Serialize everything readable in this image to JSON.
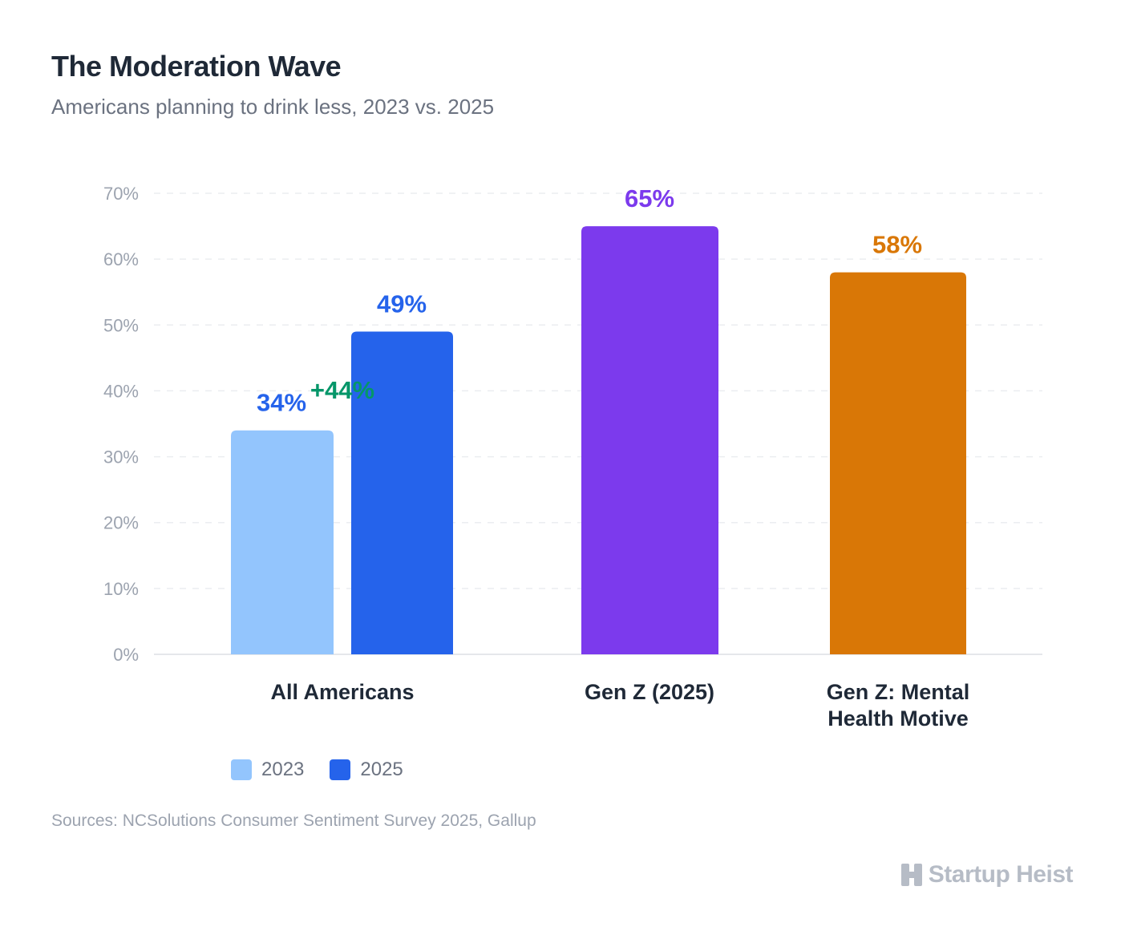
{
  "colors": {
    "series_2023": "#93c5fd",
    "series_2025": "#2563eb",
    "gen_z": "#7c3aed",
    "mental_health": "#d97706",
    "change": "#059669"
  },
  "chart_data": {
    "type": "bar",
    "title": "The Moderation Wave",
    "subtitle": "Americans planning to drink less, 2023 vs. 2025",
    "ylim": [
      0,
      70
    ],
    "yticks": [
      "0%",
      "10%",
      "20%",
      "30%",
      "40%",
      "50%",
      "60%",
      "70%"
    ],
    "grid": true,
    "categories": [
      "All Americans",
      "Gen Z (2025)",
      "Gen Z: Mental Health Motive"
    ],
    "bars": [
      {
        "category": "All Americans",
        "series": "2023",
        "value": 34,
        "label": "34%"
      },
      {
        "category": "All Americans",
        "series": "2025",
        "value": 49,
        "label": "49%"
      },
      {
        "category": "Gen Z (2025)",
        "value": 65,
        "label": "65%"
      },
      {
        "category": "Gen Z: Mental Health Motive",
        "value": 58,
        "label": "58%"
      }
    ],
    "annotation": "+44%",
    "legend": {
      "placement": "bottom-left",
      "items": [
        "2023",
        "2025"
      ]
    }
  },
  "footer": {
    "source": "Sources: NCSolutions Consumer Sentiment Survey 2025, Gallup",
    "brand": "Startup Heist",
    "brand_icon": "building-icon"
  }
}
